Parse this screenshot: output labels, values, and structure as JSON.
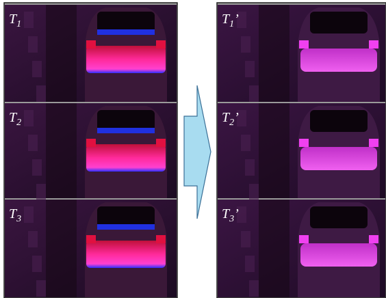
{
  "panels": {
    "left": [
      {
        "label": {
          "main": "T",
          "sub": "1"
        }
      },
      {
        "label": {
          "main": "T",
          "sub": "2"
        }
      },
      {
        "label": {
          "main": "T",
          "sub": "3"
        }
      }
    ],
    "right": [
      {
        "label": {
          "main": "T",
          "sub": "1",
          "prime": "’"
        }
      },
      {
        "label": {
          "main": "T",
          "sub": "2",
          "prime": "’"
        }
      },
      {
        "label": {
          "main": "T",
          "sub": "3",
          "prime": "’"
        }
      }
    ]
  }
}
